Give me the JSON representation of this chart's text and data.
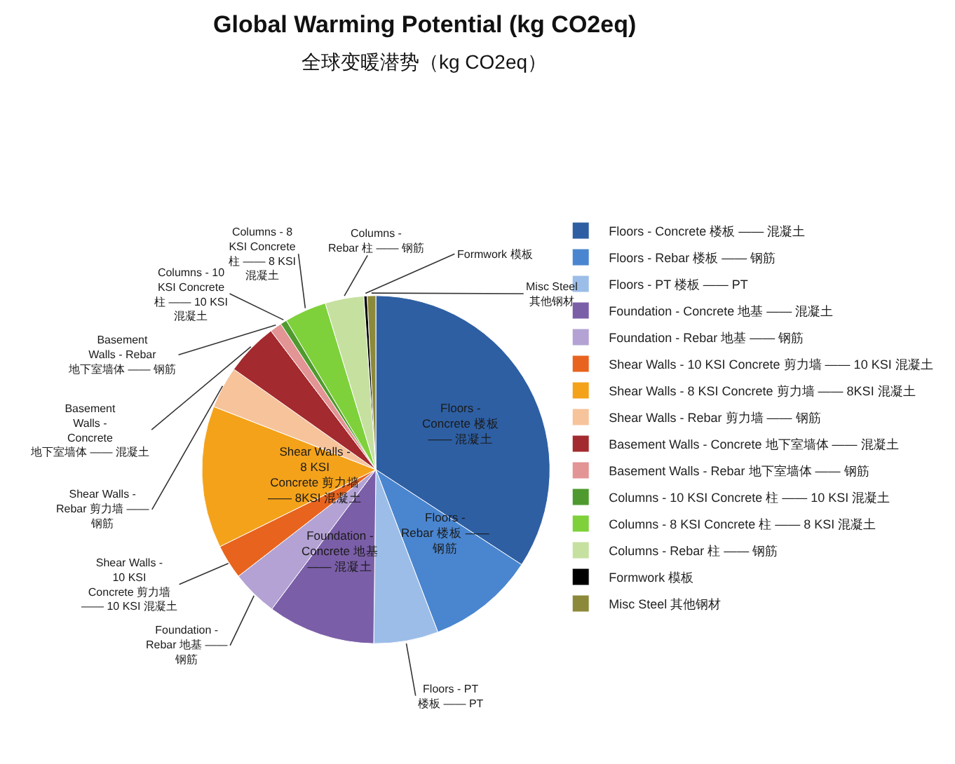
{
  "chart_data": {
    "type": "pie",
    "title": "Global Warming Potential (kg CO2eq)",
    "subtitle": "全球变暖潜势（kg CO2eq）",
    "categories": [
      "Floors - Concrete 楼板 —— 混凝土",
      "Floors - Rebar 楼板 —— 钢筋",
      "Floors - PT 楼板 —— PT",
      "Foundation - Concrete 地基 —— 混凝土",
      "Foundation - Rebar 地基 —— 钢筋",
      "Shear Walls - 10 KSI Concrete 剪力墙 —— 10 KSI 混凝土",
      "Shear Walls - 8 KSI Concrete 剪力墙 —— 8KSI 混凝土",
      "Shear Walls - Rebar 剪力墙 —— 钢筋",
      "Basement Walls - Concrete 地下室墙体 —— 混凝土",
      "Basement Walls - Rebar 地下室墙体 —— 钢筋",
      "Columns - 10 KSI Concrete 柱 —— 10 KSI 混凝土",
      "Columns - 8 KSI Concrete 柱 —— 8 KSI 混凝土",
      "Columns - Rebar 柱 —— 钢筋",
      "Formwork 模板",
      "Misc Steel 其他钢材"
    ],
    "values": [
      34.2,
      10,
      6,
      10,
      4.3,
      3.2,
      13.2,
      3.9,
      4.9,
      1.1,
      0.6,
      3.9,
      3.6,
      0.3,
      0.8
    ],
    "colors": [
      "#2e5fa3",
      "#4a86d0",
      "#9cbde8",
      "#7b5ea8",
      "#b3a2d3",
      "#e8641e",
      "#f4a21a",
      "#f6c39b",
      "#a32a2e",
      "#e39494",
      "#4f9a2e",
      "#7ed13b",
      "#c6e0a0",
      "#000000",
      "#8c8a3a"
    ],
    "legend": "right"
  }
}
